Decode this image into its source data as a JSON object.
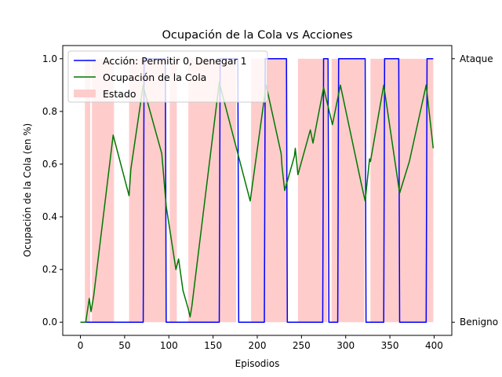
{
  "chart_data": {
    "type": "line",
    "title": "Ocupación de la Cola vs Acciones",
    "xlabel": "Episodios",
    "ylabel": "Ocupación de la Cola (en %)",
    "xlim": [
      -20,
      420
    ],
    "ylim": [
      -0.05,
      1.05
    ],
    "x_ticks": [
      0,
      50,
      100,
      150,
      200,
      250,
      300,
      350,
      400
    ],
    "y_ticks": [
      0.0,
      0.2,
      0.4,
      0.6,
      0.8,
      1.0
    ],
    "y2_ticks": [
      {
        "value": 0,
        "label": "Benigno"
      },
      {
        "value": 1,
        "label": "Ataque"
      }
    ],
    "legend_position": "upper-left",
    "grid": false,
    "series": [
      {
        "name": "Acción: Permitir 0, Denegar 1",
        "color": "#0000ff",
        "kind": "step",
        "x": [
          0,
          71,
          72,
          96,
          97,
          157,
          158,
          178,
          179,
          208,
          209,
          233,
          234,
          274,
          275,
          280,
          281,
          291,
          292,
          322,
          323,
          343,
          344,
          360,
          361,
          391,
          392,
          399
        ],
        "y": [
          0,
          0,
          1,
          1,
          0,
          0,
          1,
          1,
          0,
          0,
          1,
          1,
          0,
          0,
          1,
          1,
          0,
          0,
          1,
          1,
          0,
          0,
          1,
          1,
          0,
          0,
          1,
          1
        ]
      },
      {
        "name": "Ocupación de la Cola",
        "color": "#007700",
        "kind": "line",
        "x": [
          0,
          6,
          10,
          12,
          15,
          37,
          55,
          57,
          71,
          73,
          92,
          97,
          108,
          111,
          116,
          122,
          124,
          126,
          157,
          192,
          210,
          227,
          228,
          231,
          242,
          243,
          246,
          260,
          263,
          275,
          285,
          294,
          318,
          322,
          327,
          328,
          343,
          361,
          372,
          391,
          399
        ],
        "y": [
          0.0,
          0.0,
          0.09,
          0.04,
          0.1,
          0.71,
          0.48,
          0.58,
          0.9,
          0.87,
          0.64,
          0.44,
          0.2,
          0.24,
          0.12,
          0.05,
          0.02,
          0.06,
          0.91,
          0.46,
          0.9,
          0.64,
          0.59,
          0.5,
          0.63,
          0.66,
          0.56,
          0.73,
          0.68,
          0.89,
          0.75,
          0.9,
          0.52,
          0.46,
          0.62,
          0.61,
          0.9,
          0.49,
          0.61,
          0.9,
          0.66
        ]
      }
    ],
    "state": {
      "name": "Estado",
      "color": "#ffcccc",
      "intervals": [
        [
          5,
          11
        ],
        [
          13,
          38
        ],
        [
          55,
          97
        ],
        [
          101,
          109
        ],
        [
          122,
          176
        ],
        [
          193,
          234
        ],
        [
          246,
          279
        ],
        [
          284,
          321
        ],
        [
          328,
          399
        ]
      ]
    }
  }
}
